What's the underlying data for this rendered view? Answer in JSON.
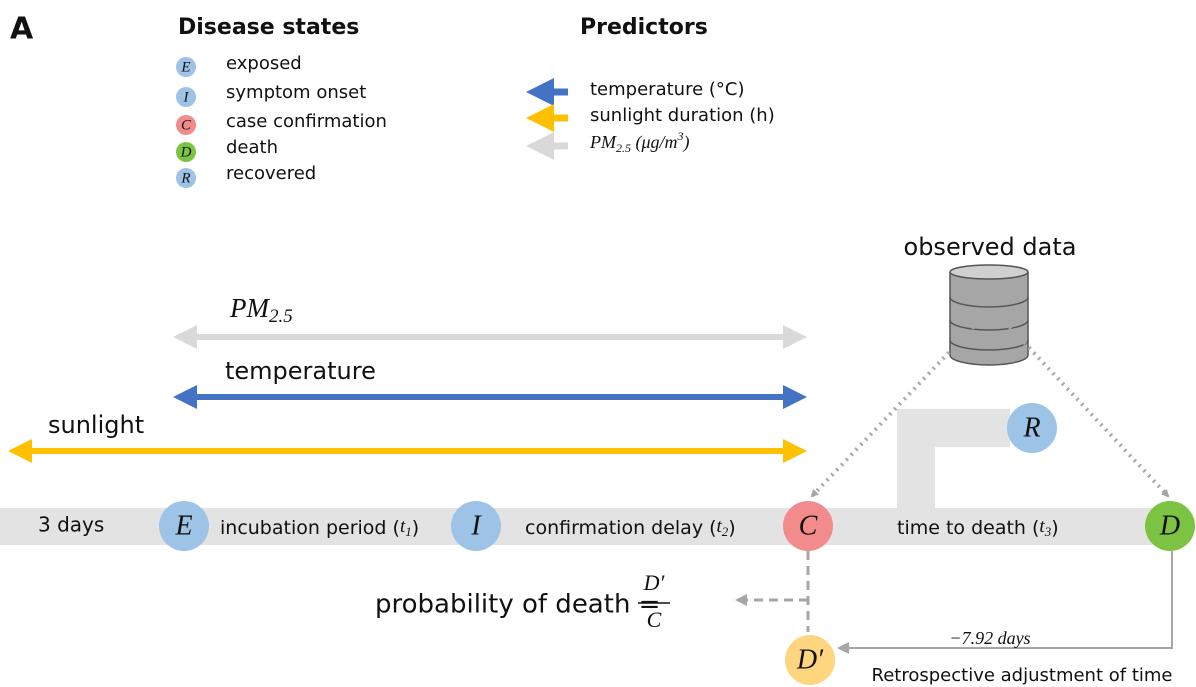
{
  "panel_label": "A",
  "legend": {
    "disease_title": "Disease states",
    "states": [
      {
        "symbol": "E",
        "label": "exposed"
      },
      {
        "symbol": "I",
        "label": "symptom onset"
      },
      {
        "symbol": "C",
        "label": "case confirmation"
      },
      {
        "symbol": "D",
        "label": "death"
      },
      {
        "symbol": "R",
        "label": "recovered"
      }
    ],
    "predictor_title": "Predictors",
    "predictors": {
      "temperature": "temperature (°C)",
      "sunlight": "sunlight duration (h)",
      "pm25": {
        "var": "PM",
        "sub": "2.5",
        "unit": " (μg/m",
        "sup": "3",
        "close": ")"
      }
    }
  },
  "database": {
    "label": "observed data"
  },
  "exposures": {
    "pm25": {
      "var": "PM",
      "sub": "2.5"
    },
    "temperature": "temperature",
    "sunlight": "sunlight"
  },
  "timeline": {
    "start": "3 days",
    "nodes": {
      "E": "E",
      "I": "I",
      "C": "C",
      "D": "D",
      "R": "R",
      "D_prime": "D′"
    },
    "intervals": [
      {
        "text": "incubation period (",
        "var": "t",
        "sub": "1",
        "close": ")"
      },
      {
        "text": "confirmation delay (",
        "var": "t",
        "sub": "2",
        "close": ")"
      },
      {
        "text": "time to death (",
        "var": "t",
        "sub": "3",
        "close": ")"
      }
    ]
  },
  "probability": {
    "text": "probability of death =",
    "numerator": "D′",
    "denominator": "C"
  },
  "adjustment": {
    "value": "−7.92 days",
    "label": "Retrospective adjustment of time"
  }
}
